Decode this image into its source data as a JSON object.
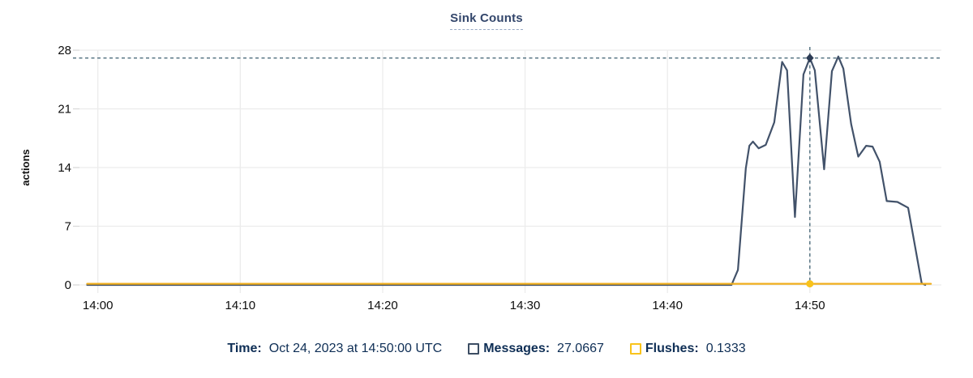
{
  "title": "Sink Counts",
  "footer": {
    "time_label": "Time:",
    "time_value": "Oct 24, 2023 at 14:50:00 UTC",
    "messages_label": "Messages:",
    "messages_value": "27.0667",
    "flushes_label": "Flushes:",
    "flushes_value": "0.1333"
  },
  "colors": {
    "messages_line": "#42526a",
    "messages_square": "#3c4d63",
    "flushes_line": "#f0ae1c",
    "flushes_square": "#f9c31b",
    "crosshair": "#4e6d7d",
    "marker": "#2d3c55",
    "grid": "#ececec",
    "tick_mark": "#d9d9d9",
    "axis_text": "#0d0d0d",
    "footer_text": "#0e2e55",
    "title_text": "#33466b",
    "title_underline": "#97a9c4"
  },
  "chart_data": {
    "type": "line",
    "title": "Sink Counts",
    "xlabel": "",
    "ylabel": "actions",
    "x_unit": "minutes after 14:00 UTC, Oct 24 2023",
    "ylim": [
      0,
      28
    ],
    "xlim": [
      -1.3,
      59.2
    ],
    "grid": true,
    "y_ticks": [
      0,
      7,
      14,
      21,
      28
    ],
    "x_ticks": [
      {
        "t": 0,
        "label": "14:00"
      },
      {
        "t": 10,
        "label": "14:10"
      },
      {
        "t": 20,
        "label": "14:20"
      },
      {
        "t": 30,
        "label": "14:30"
      },
      {
        "t": 40,
        "label": "14:40"
      },
      {
        "t": 50,
        "label": "14:50"
      }
    ],
    "series": [
      {
        "name": "Messages",
        "color": "#42526a",
        "points": [
          [
            -0.75,
            0
          ],
          [
            44.5,
            0
          ],
          [
            44.95,
            1.8
          ],
          [
            45.5,
            13.9
          ],
          [
            45.75,
            16.6
          ],
          [
            46.0,
            17.1
          ],
          [
            46.4,
            16.3
          ],
          [
            46.9,
            16.7
          ],
          [
            47.5,
            19.4
          ],
          [
            48.05,
            26.6
          ],
          [
            48.4,
            25.6
          ],
          [
            48.95,
            8.1
          ],
          [
            49.55,
            25.1
          ],
          [
            50.0,
            27.0667
          ],
          [
            50.35,
            25.6
          ],
          [
            51.0,
            13.8
          ],
          [
            51.55,
            25.5
          ],
          [
            52.0,
            27.25
          ],
          [
            52.35,
            25.8
          ],
          [
            52.9,
            19.2
          ],
          [
            53.4,
            15.3
          ],
          [
            53.95,
            16.6
          ],
          [
            54.4,
            16.5
          ],
          [
            54.9,
            14.7
          ],
          [
            55.4,
            10.0
          ],
          [
            56.15,
            9.9
          ],
          [
            56.9,
            9.2
          ],
          [
            57.85,
            0.2
          ],
          [
            58.1,
            0
          ]
        ]
      },
      {
        "name": "Flushes",
        "color": "#f0ae1c",
        "points": [
          [
            -0.75,
            0.1333
          ],
          [
            58.5,
            0.1333
          ]
        ]
      }
    ],
    "crosshair": {
      "t": 50,
      "time_label": "Oct 24, 2023 at 14:50:00 UTC",
      "messages_value": 27.0667,
      "flushes_value": 0.1333
    }
  }
}
